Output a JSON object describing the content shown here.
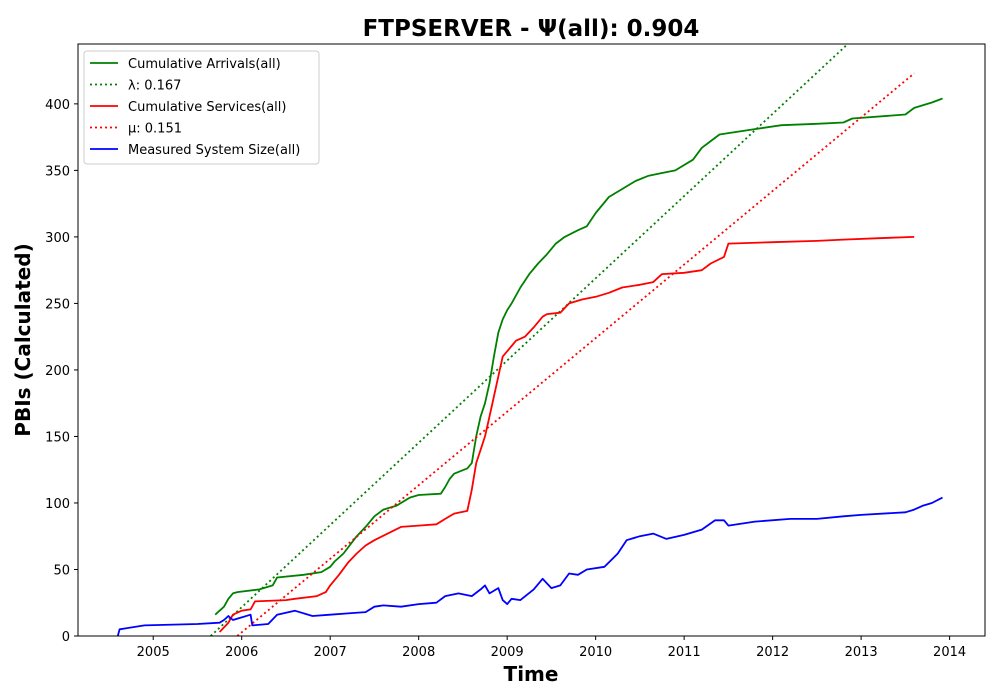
{
  "chart_data": {
    "type": "line",
    "title": "FTPSERVER -  Ψ(all): 0.904",
    "xlabel": "Time",
    "ylabel": "PBIs (Calculated)",
    "xlim": [
      2004.15,
      2014.4
    ],
    "ylim": [
      0,
      445
    ],
    "xticks": [
      "2005",
      "2006",
      "2007",
      "2008",
      "2009",
      "2010",
      "2011",
      "2012",
      "2013",
      "2014"
    ],
    "yticks": [
      0,
      50,
      100,
      150,
      200,
      250,
      300,
      350,
      400
    ],
    "legend_position": "top-left",
    "grid": false,
    "series": [
      {
        "name": "Cumulative Arrivals(all)",
        "color": "#008000",
        "style": "solid",
        "x": [
          2005.7,
          2005.8,
          2005.85,
          2005.9,
          2005.95,
          2006.2,
          2006.35,
          2006.4,
          2006.7,
          2006.9,
          2007.0,
          2007.05,
          2007.15,
          2007.3,
          2007.4,
          2007.5,
          2007.6,
          2007.75,
          2007.85,
          2007.9,
          2008.0,
          2008.25,
          2008.3,
          2008.35,
          2008.4,
          2008.55,
          2008.6,
          2008.65,
          2008.7,
          2008.75,
          2008.8,
          2008.85,
          2008.9,
          2008.95,
          2009.0,
          2009.05,
          2009.15,
          2009.25,
          2009.35,
          2009.45,
          2009.55,
          2009.65,
          2009.8,
          2009.9,
          2010.0,
          2010.15,
          2010.3,
          2010.45,
          2010.6,
          2010.75,
          2010.9,
          2011.1,
          2011.2,
          2011.3,
          2011.4,
          2011.5,
          2011.8,
          2012.1,
          2012.5,
          2012.8,
          2012.9,
          2013.5,
          2013.6,
          2013.8,
          2013.92
        ],
        "y": [
          16,
          22,
          28,
          32,
          33,
          35,
          38,
          44,
          46,
          48,
          52,
          56,
          62,
          75,
          82,
          90,
          95,
          98,
          102,
          104,
          106,
          107,
          112,
          118,
          122,
          126,
          130,
          150,
          165,
          175,
          190,
          210,
          228,
          238,
          245,
          250,
          262,
          272,
          280,
          287,
          295,
          300,
          305,
          308,
          318,
          330,
          336,
          342,
          346,
          348,
          350,
          358,
          367,
          372,
          377,
          378,
          381,
          384,
          385,
          386,
          389,
          392,
          397,
          401,
          404
        ]
      },
      {
        "name": "λ: 0.167",
        "color": "#008000",
        "style": "dotted",
        "x": [
          2005.65,
          2012.85
        ],
        "y": [
          0,
          445
        ]
      },
      {
        "name": "Cumulative Services(all)",
        "color": "#ff0000",
        "style": "solid",
        "x": [
          2005.75,
          2005.85,
          2005.9,
          2006.0,
          2006.1,
          2006.15,
          2006.5,
          2006.6,
          2006.85,
          2006.95,
          2007.0,
          2007.1,
          2007.2,
          2007.3,
          2007.4,
          2007.5,
          2007.65,
          2007.8,
          2008.0,
          2008.2,
          2008.3,
          2008.4,
          2008.55,
          2008.6,
          2008.65,
          2008.7,
          2008.75,
          2008.8,
          2008.85,
          2008.9,
          2008.95,
          2009.05,
          2009.1,
          2009.2,
          2009.3,
          2009.4,
          2009.45,
          2009.6,
          2009.7,
          2009.85,
          2010.0,
          2010.15,
          2010.3,
          2010.5,
          2010.65,
          2010.75,
          2011.0,
          2011.2,
          2011.3,
          2011.45,
          2011.5,
          2012.0,
          2012.5,
          2012.8,
          2013.2,
          2013.6
        ],
        "y": [
          3,
          10,
          16,
          19,
          20,
          26,
          27,
          28,
          30,
          33,
          38,
          46,
          55,
          62,
          68,
          72,
          77,
          82,
          83,
          84,
          88,
          92,
          94,
          110,
          130,
          140,
          150,
          165,
          180,
          195,
          210,
          218,
          222,
          225,
          232,
          240,
          242,
          243,
          250,
          253,
          255,
          258,
          262,
          264,
          266,
          272,
          273,
          275,
          280,
          285,
          295,
          296,
          297,
          298,
          299,
          300
        ],
        "note": ""
      },
      {
        "name": "μ: 0.151",
        "color": "#ff0000",
        "style": "dotted",
        "x": [
          2005.95,
          2013.6
        ],
        "y": [
          0,
          423
        ]
      },
      {
        "name": "Measured System Size(all)",
        "color": "#0000ff",
        "style": "solid",
        "x": [
          2004.6,
          2004.62,
          2004.9,
          2005.5,
          2005.75,
          2005.8,
          2005.85,
          2005.9,
          2006.0,
          2006.1,
          2006.12,
          2006.3,
          2006.4,
          2006.6,
          2006.8,
          2007.0,
          2007.2,
          2007.4,
          2007.5,
          2007.6,
          2007.8,
          2008.0,
          2008.2,
          2008.3,
          2008.45,
          2008.6,
          2008.7,
          2008.75,
          2008.8,
          2008.9,
          2008.95,
          2009.0,
          2009.05,
          2009.15,
          2009.3,
          2009.4,
          2009.5,
          2009.6,
          2009.7,
          2009.8,
          2009.9,
          2010.1,
          2010.25,
          2010.35,
          2010.5,
          2010.65,
          2010.8,
          2011.0,
          2011.2,
          2011.35,
          2011.45,
          2011.5,
          2011.8,
          2012.2,
          2012.5,
          2012.8,
          2013.0,
          2013.5,
          2013.6,
          2013.7,
          2013.8,
          2013.92
        ],
        "y": [
          0,
          5,
          8,
          9,
          10,
          12,
          15,
          12,
          14,
          16,
          8,
          9,
          16,
          19,
          15,
          16,
          17,
          18,
          22,
          23,
          22,
          24,
          25,
          30,
          32,
          30,
          35,
          38,
          32,
          36,
          27,
          24,
          28,
          27,
          35,
          43,
          36,
          38,
          47,
          46,
          50,
          52,
          62,
          72,
          75,
          77,
          73,
          76,
          80,
          87,
          87,
          83,
          86,
          88,
          88,
          90,
          91,
          93,
          95,
          98,
          100,
          104
        ]
      }
    ]
  }
}
